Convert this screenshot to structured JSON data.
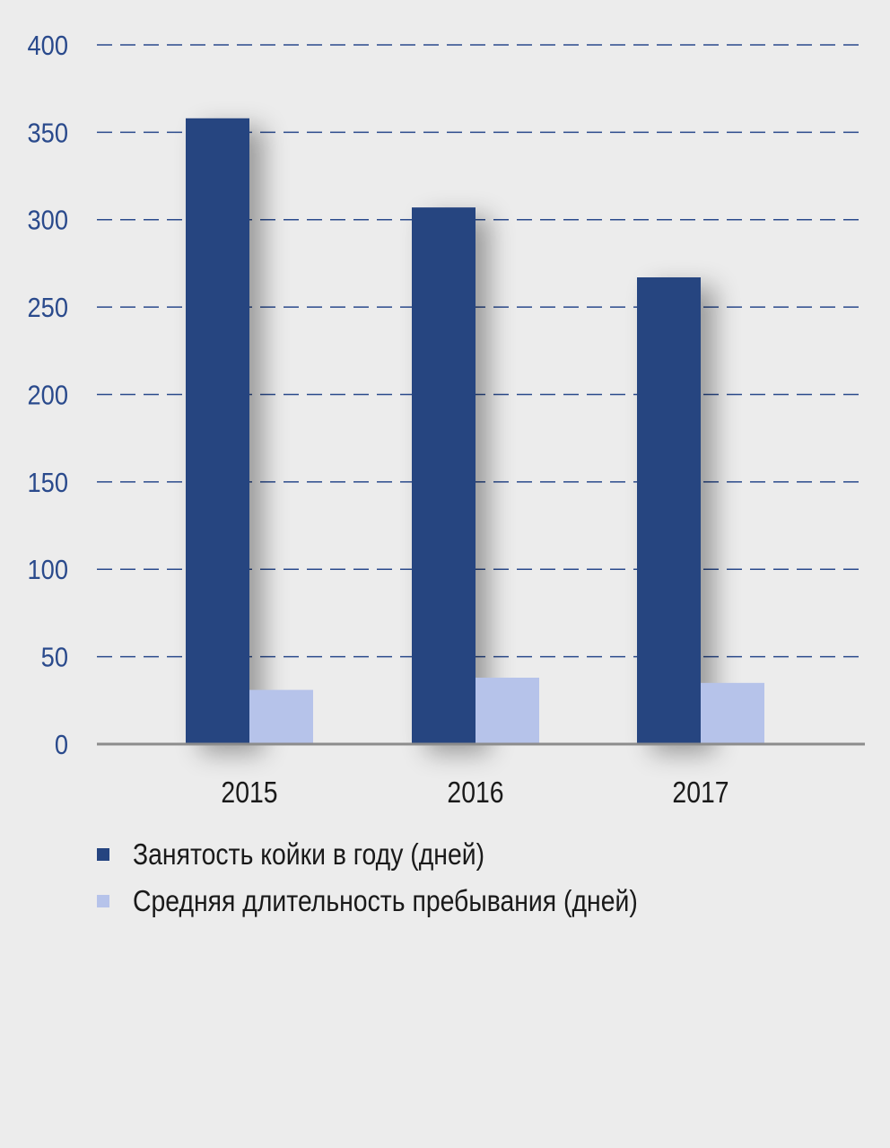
{
  "chart_data": {
    "type": "bar",
    "categories": [
      "2015",
      "2016",
      "2017"
    ],
    "series": [
      {
        "name": "Занятость койки в году (дней)",
        "values": [
          358,
          307,
          267
        ],
        "color": "#254480"
      },
      {
        "name": "Средняя длительность пребывания (дней)",
        "values": [
          31,
          38,
          35
        ],
        "color": "#b6c3ea"
      }
    ],
    "ylim": [
      0,
      400
    ],
    "yticks": [
      "0",
      "50",
      "100",
      "150",
      "200",
      "250",
      "300",
      "350",
      "400"
    ],
    "grid": true,
    "grid_style": "dashed",
    "legend_position": "bottom-left",
    "colors": {
      "background": "#ececec",
      "tick_label": "#2a4a8c",
      "grid": "#2a4a8c",
      "baseline": "#8c8c8c",
      "category_label": "#1a1a1a"
    }
  }
}
